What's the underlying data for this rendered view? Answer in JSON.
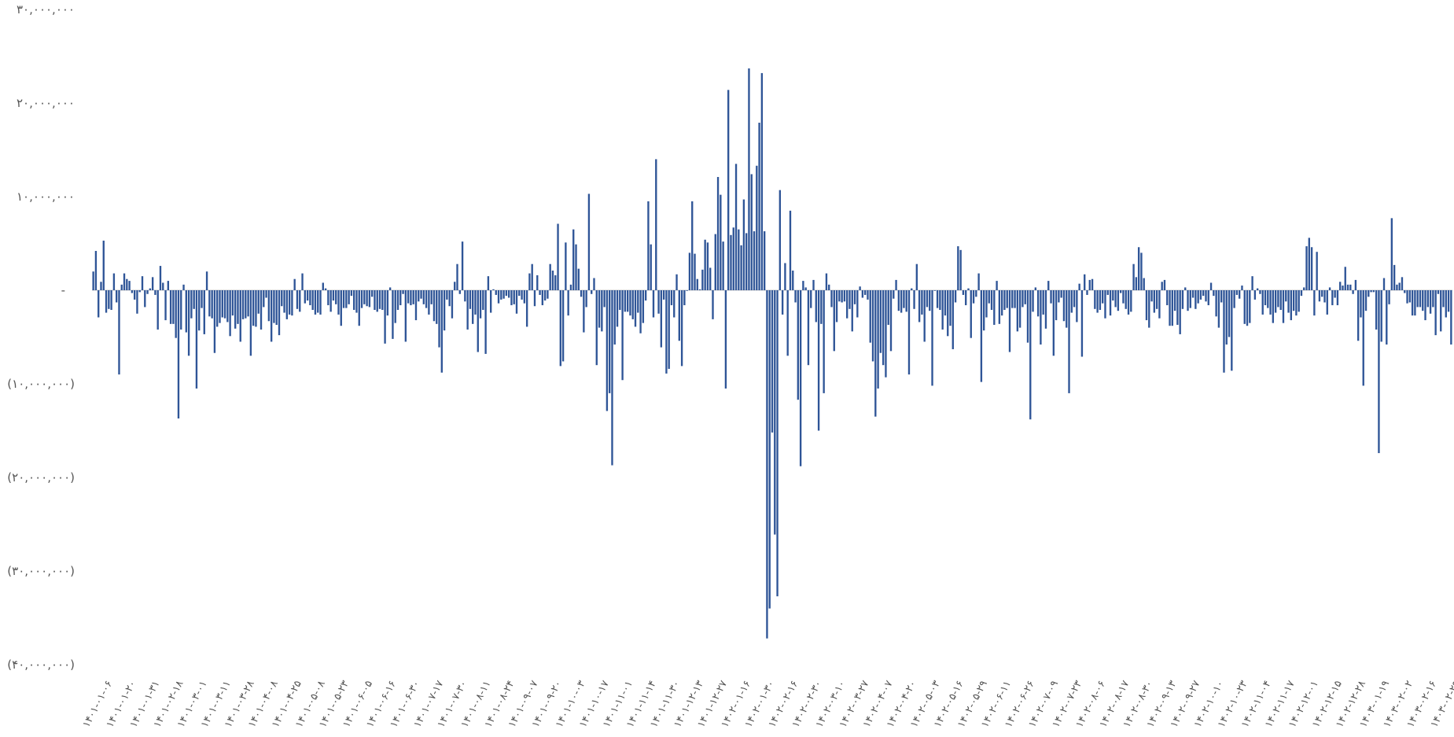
{
  "chart_data": {
    "type": "bar",
    "title": "",
    "xlabel": "",
    "ylabel": "",
    "ylim": [
      -40000000,
      30000000
    ],
    "y_ticks": [
      {
        "value": 30000000,
        "label": "۳۰,۰۰۰,۰۰۰"
      },
      {
        "value": 20000000,
        "label": "۲۰,۰۰۰,۰۰۰"
      },
      {
        "value": 10000000,
        "label": "۱۰,۰۰۰,۰۰۰"
      },
      {
        "value": 0,
        "label": "-"
      },
      {
        "value": -10000000,
        "label": "(۱۰,۰۰۰,۰۰۰)"
      },
      {
        "value": -20000000,
        "label": "(۲۰,۰۰۰,۰۰۰)"
      },
      {
        "value": -30000000,
        "label": "(۳۰,۰۰۰,۰۰۰)"
      },
      {
        "value": -40000000,
        "label": "(۴۰,۰۰۰,۰۰۰)"
      }
    ],
    "x_tick_labels": [
      "۱۴۰۱-۰۱-۰۶",
      "۱۴۰۱-۰۱-۲۰",
      "۱۴۰۱-۰۱-۳۱",
      "۱۴۰۱-۰۲-۱۸",
      "۱۴۰۱-۰۳-۰۱",
      "۱۴۰۱-۰۳-۱۱",
      "۱۴۰۱-۰۳-۲۸",
      "۱۴۰۱-۰۴-۰۸",
      "۱۴۰۱-۰۴-۲۵",
      "۱۴۰۱-۰۵-۰۸",
      "۱۴۰۱-۰۵-۲۳",
      "۱۴۰۱-۰۶-۰۵",
      "۱۴۰۱-۰۶-۱۶",
      "۱۴۰۱-۰۶-۳۰",
      "۱۴۰۱-۰۷-۱۷",
      "۱۴۰۱-۰۷-۳۰",
      "۱۴۰۱-۰۸-۱۱",
      "۱۴۰۱-۰۸-۲۴",
      "۱۴۰۱-۰۹-۰۷",
      "۱۴۰۱-۰۹-۲۰",
      "۱۴۰۱-۱۰-۰۳",
      "۱۴۰۱-۱۰-۱۷",
      "۱۴۰۱-۱۱-۰۱",
      "۱۴۰۱-۱۱-۱۴",
      "۱۴۰۱-۱۱-۳۰",
      "۱۴۰۱-۱۲-۱۳",
      "۱۴۰۱-۱۲-۲۷",
      "۱۴۰۲-۰۱-۱۶",
      "۱۴۰۲-۰۱-۳۰",
      "۱۴۰۲-۰۲-۱۶",
      "۱۴۰۲-۰۲-۳۰",
      "۱۴۰۲-۰۳-۱۰",
      "۱۴۰۲-۰۳-۲۷",
      "۱۴۰۲-۰۴-۰۷",
      "۱۴۰۲-۰۴-۲۰",
      "۱۴۰۲-۰۵-۰۳",
      "۱۴۰۲-۰۵-۱۶",
      "۱۴۰۲-۰۵-۲۹",
      "۱۴۰۲-۰۶-۱۱",
      "۱۴۰۲-۰۶-۲۶",
      "۱۴۰۲-۰۷-۰۹",
      "۱۴۰۲-۰۷-۲۳",
      "۱۴۰۲-۰۸-۰۶",
      "۱۴۰۲-۰۸-۱۷",
      "۱۴۰۲-۰۸-۳۰",
      "۱۴۰۲-۰۹-۱۳",
      "۱۴۰۲-۰۹-۲۷",
      "۱۴۰۲-۱۰-۱۰",
      "۱۴۰۲-۱۰-۲۳",
      "۱۴۰۲-۱۱-۰۴",
      "۱۴۰۲-۱۱-۱۷",
      "۱۴۰۲-۱۲-۰۱",
      "۱۴۰۲-۱۲-۱۵",
      "۱۴۰۲-۱۲-۲۸",
      "۱۴۰۳-۰۱-۱۹",
      "۱۴۰۳-۰۲-۰۲",
      "۱۴۰۳-۰۲-۱۶",
      "۱۴۰۳-۰۲-۲۹"
    ],
    "bar_color": "#2f5597",
    "zero_line_color": "#d9d9d9",
    "series": [
      {
        "values": [
          2.0,
          4.2,
          -2.9,
          0.9,
          5.3,
          -2.4,
          -2.0,
          -2.1,
          1.8,
          -1.3,
          -9.0,
          0.6,
          1.8,
          1.2,
          1.0,
          -0.3,
          -1.0,
          -2.5,
          -0.2,
          1.5,
          -1.8,
          -0.4,
          0.2,
          1.4,
          -0.5,
          -4.2,
          2.6,
          0.8,
          -3.2,
          1.0,
          -3.6,
          -3.6,
          -5.1,
          -13.7,
          -4.2,
          0.6,
          -4.5,
          -7.0,
          -3.0,
          -2.0,
          -10.5,
          -4.3,
          -1.9,
          -4.7,
          2.0,
          -2.8,
          -3.0,
          -6.7,
          -3.9,
          -3.5,
          -2.9,
          -3.0,
          -3.4,
          -4.9,
          -2.7,
          -4.1,
          -3.6,
          -5.5,
          -3.1,
          -3.0,
          -2.8,
          -7.0,
          -3.8,
          -3.9,
          -2.5,
          -4.2,
          -1.8,
          -0.8,
          -3.3,
          -5.5,
          -3.5,
          -3.7,
          -4.8,
          -1.7,
          -2.4,
          -3.1,
          -2.6,
          -2.7,
          1.2,
          -2.0,
          -2.3,
          1.8,
          -1.4,
          -1.1,
          -1.6,
          -2.1,
          -2.6,
          -2.4,
          -2.6,
          0.8,
          0.2,
          -1.6,
          -2.3,
          -1.1,
          -1.5,
          -2.6,
          -3.8,
          -1.9,
          -1.9,
          -1.5,
          -0.6,
          -2.1,
          -2.4,
          -3.8,
          -1.9,
          -1.5,
          -1.7,
          -1.8,
          -0.7,
          -2.1,
          -2.3,
          -2.0,
          -2.1,
          -5.7,
          -2.7,
          0.3,
          -5.2,
          -3.5,
          -2.1,
          -1.6,
          -0.4,
          -5.5,
          -1.4,
          -1.6,
          -1.5,
          -3.2,
          -1.2,
          -0.9,
          -1.5,
          -1.9,
          -2.6,
          -1.5,
          -3.3,
          -3.6,
          -6.1,
          -8.8,
          -4.3,
          -1.0,
          -1.7,
          -3.0,
          0.9,
          2.8,
          -0.4,
          5.2,
          -1.2,
          -4.2,
          -2.0,
          -3.6,
          -2.6,
          -6.6,
          -3.0,
          -2.1,
          -6.8,
          1.5,
          -2.4,
          0.1,
          -0.5,
          -1.4,
          -1.0,
          -0.9,
          -0.6,
          -0.8,
          -1.6,
          -1.5,
          -2.5,
          -0.6,
          -1.0,
          -1.4,
          -3.9,
          1.8,
          2.8,
          -1.7,
          1.6,
          -0.5,
          -1.6,
          -1.1,
          -0.9,
          2.8,
          2.1,
          1.6,
          7.1,
          -8.1,
          -7.6,
          5.1,
          -2.7,
          0.6,
          6.5,
          4.9,
          2.3,
          -0.7,
          -4.5,
          -1.8,
          10.3,
          -0.4,
          1.3,
          -8.0,
          -4.0,
          -4.4,
          -1.8,
          -12.9,
          -11.0,
          -18.7,
          -5.8,
          -3.9,
          -2.1,
          -9.6,
          -2.3,
          -2.3,
          -2.7,
          -3.1,
          -3.9,
          -2.4,
          -4.6,
          -3.5,
          -1.1,
          9.5,
          4.9,
          -2.9,
          14.0,
          -2.5,
          -6.1,
          -1.0,
          -8.9,
          -8.4,
          -1.6,
          -2.9,
          1.7,
          -5.4,
          -8.1,
          -1.6,
          0.0,
          4.0,
          9.5,
          3.9,
          1.2,
          0.1,
          2.2,
          5.4,
          5.1,
          2.4,
          -3.1,
          6.0,
          12.1,
          10.2,
          5.2,
          -10.5,
          21.4,
          5.9,
          6.7,
          13.5,
          6.5,
          4.8,
          9.7,
          6.1,
          23.7,
          12.4,
          6.3,
          13.3,
          17.9,
          23.2,
          6.3,
          -37.2,
          -34.0,
          -15.2,
          -26.1,
          -32.7,
          10.7,
          -2.6,
          2.9,
          -7.0,
          8.5,
          2.1,
          -1.3,
          -11.7,
          -18.8,
          1.0,
          0.3,
          -8.0,
          -1.9,
          1.1,
          -3.4,
          -15.0,
          -3.6,
          -11.0,
          1.8,
          0.6,
          -1.8,
          -6.5,
          -3.4,
          -1.2,
          -1.3,
          -1.2,
          -3.0,
          -2.0,
          -4.4,
          -1.5,
          -2.9,
          0.4,
          -0.8,
          -0.5,
          -1.0,
          -5.6,
          -7.6,
          -13.5,
          -10.5,
          -6.7,
          -8.0,
          -9.3,
          -3.7,
          -6.5,
          -0.9,
          1.1,
          -2.2,
          -2.4,
          -1.9,
          -2.3,
          -9.0,
          0.2,
          -2.0,
          2.8,
          -3.4,
          -2.6,
          -5.5,
          -1.8,
          -2.2,
          -10.2,
          0.0,
          -1.9,
          -2.1,
          -4.2,
          -2.7,
          -4.9,
          -3.8,
          -6.3,
          -1.3,
          4.7,
          4.3,
          -0.5,
          -1.6,
          0.2,
          -5.1,
          -1.4,
          -0.7,
          1.8,
          -9.8,
          -4.3,
          -2.9,
          -1.4,
          -2.1,
          -3.7,
          1.0,
          -3.6,
          -2.7,
          -2.1,
          -1.9,
          -6.6,
          -1.9,
          -1.9,
          -4.4,
          -4.0,
          -1.8,
          -1.5,
          -5.6,
          -13.8,
          -2.3,
          0.3,
          -2.8,
          -5.8,
          -2.6,
          -4.1,
          1.0,
          -1.4,
          -7.0,
          -3.2,
          -1.3,
          -0.8,
          -3.3,
          -4.0,
          -11.0,
          -2.4,
          -1.8,
          -3.4,
          0.7,
          -7.1,
          1.7,
          -0.5,
          1.1,
          1.2,
          -2.0,
          -2.4,
          -2.1,
          -1.4,
          -3.0,
          -0.5,
          -2.7,
          -1.1,
          -1.8,
          -2.2,
          -0.3,
          -1.4,
          -2.0,
          -2.6,
          -2.3,
          2.8,
          1.4,
          4.6,
          4.0,
          1.3,
          -3.2,
          -4.0,
          -1.2,
          -2.4,
          -2.0,
          -3.0,
          0.9,
          1.1,
          -1.6,
          -3.8,
          -3.8,
          -2.2,
          -3.7,
          -4.7,
          -2.0,
          0.3,
          -2.2,
          -1.9,
          -0.8,
          -2.0,
          -1.4,
          -1.0,
          -0.6,
          -1.2,
          -1.6,
          0.8,
          -0.6,
          -2.8,
          -4.0,
          -1.3,
          -8.8,
          -5.8,
          -5.0,
          -8.6,
          -1.9,
          -0.5,
          -0.9,
          0.5,
          -3.6,
          -3.8,
          -3.5,
          1.5,
          -1.0,
          0.2,
          -0.4,
          -2.6,
          -1.6,
          -1.9,
          -2.6,
          -3.5,
          -2.4,
          -1.8,
          -2.1,
          -3.5,
          -1.2,
          -2.4,
          -3.2,
          -2.2,
          -2.7,
          -2.3,
          -0.6,
          0.3,
          4.7,
          5.6,
          4.6,
          -2.7,
          4.1,
          -1.2,
          -0.7,
          -1.3,
          -2.6,
          0.3,
          -1.6,
          -0.8,
          -1.6,
          0.9,
          0.5,
          2.5,
          0.6,
          0.6,
          -0.4,
          1.1,
          -5.4,
          -2.9,
          -10.2,
          -2.2,
          -0.7,
          -0.2,
          -0.2,
          -4.2,
          -17.4,
          -5.5,
          1.3,
          -5.8,
          -1.5,
          7.7,
          2.7,
          0.6,
          0.8,
          1.4,
          -0.3,
          -1.4,
          -1.3,
          -2.7,
          -2.7,
          -1.8,
          -1.8,
          -2.2,
          -3.2,
          -1.8,
          -2.5,
          -1.8,
          -4.8,
          -0.4,
          -4.4,
          -1.8,
          -2.9,
          -2.3,
          -5.8
        ]
      }
    ],
    "value_unit": 1000000
  }
}
